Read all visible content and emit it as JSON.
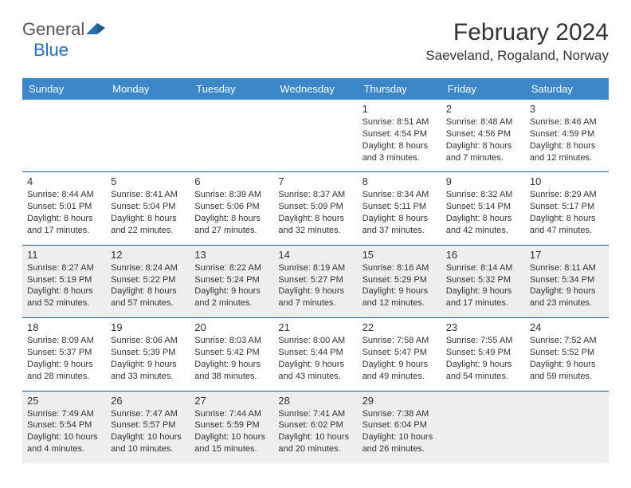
{
  "logo": {
    "text1": "General",
    "text2": "Blue"
  },
  "title": "February 2024",
  "location": "Saeveland, Rogaland, Norway",
  "colors": {
    "header_bg": "#3b87c8",
    "header_text": "#ffffff",
    "border": "#1d5a8e",
    "shaded": "#eeeeee",
    "logo_blue": "#2a6db5",
    "logo_gray": "#555555"
  },
  "weekdays": [
    "Sunday",
    "Monday",
    "Tuesday",
    "Wednesday",
    "Thursday",
    "Friday",
    "Saturday"
  ],
  "weeks": [
    [
      null,
      null,
      null,
      null,
      {
        "n": "1",
        "sunrise": "8:51 AM",
        "sunset": "4:54 PM",
        "day_h": "8",
        "day_m": "3"
      },
      {
        "n": "2",
        "sunrise": "8:48 AM",
        "sunset": "4:56 PM",
        "day_h": "8",
        "day_m": "7"
      },
      {
        "n": "3",
        "sunrise": "8:46 AM",
        "sunset": "4:59 PM",
        "day_h": "8",
        "day_m": "12"
      }
    ],
    [
      {
        "n": "4",
        "sunrise": "8:44 AM",
        "sunset": "5:01 PM",
        "day_h": "8",
        "day_m": "17"
      },
      {
        "n": "5",
        "sunrise": "8:41 AM",
        "sunset": "5:04 PM",
        "day_h": "8",
        "day_m": "22"
      },
      {
        "n": "6",
        "sunrise": "8:39 AM",
        "sunset": "5:06 PM",
        "day_h": "8",
        "day_m": "27"
      },
      {
        "n": "7",
        "sunrise": "8:37 AM",
        "sunset": "5:09 PM",
        "day_h": "8",
        "day_m": "32"
      },
      {
        "n": "8",
        "sunrise": "8:34 AM",
        "sunset": "5:11 PM",
        "day_h": "8",
        "day_m": "37"
      },
      {
        "n": "9",
        "sunrise": "8:32 AM",
        "sunset": "5:14 PM",
        "day_h": "8",
        "day_m": "42"
      },
      {
        "n": "10",
        "sunrise": "8:29 AM",
        "sunset": "5:17 PM",
        "day_h": "8",
        "day_m": "47"
      }
    ],
    [
      {
        "n": "11",
        "sunrise": "8:27 AM",
        "sunset": "5:19 PM",
        "day_h": "8",
        "day_m": "52",
        "shaded": true
      },
      {
        "n": "12",
        "sunrise": "8:24 AM",
        "sunset": "5:22 PM",
        "day_h": "8",
        "day_m": "57",
        "shaded": true
      },
      {
        "n": "13",
        "sunrise": "8:22 AM",
        "sunset": "5:24 PM",
        "day_h": "9",
        "day_m": "2",
        "shaded": true
      },
      {
        "n": "14",
        "sunrise": "8:19 AM",
        "sunset": "5:27 PM",
        "day_h": "9",
        "day_m": "7",
        "shaded": true
      },
      {
        "n": "15",
        "sunrise": "8:16 AM",
        "sunset": "5:29 PM",
        "day_h": "9",
        "day_m": "12",
        "shaded": true
      },
      {
        "n": "16",
        "sunrise": "8:14 AM",
        "sunset": "5:32 PM",
        "day_h": "9",
        "day_m": "17",
        "shaded": true
      },
      {
        "n": "17",
        "sunrise": "8:11 AM",
        "sunset": "5:34 PM",
        "day_h": "9",
        "day_m": "23",
        "shaded": true
      }
    ],
    [
      {
        "n": "18",
        "sunrise": "8:09 AM",
        "sunset": "5:37 PM",
        "day_h": "9",
        "day_m": "28"
      },
      {
        "n": "19",
        "sunrise": "8:06 AM",
        "sunset": "5:39 PM",
        "day_h": "9",
        "day_m": "33"
      },
      {
        "n": "20",
        "sunrise": "8:03 AM",
        "sunset": "5:42 PM",
        "day_h": "9",
        "day_m": "38"
      },
      {
        "n": "21",
        "sunrise": "8:00 AM",
        "sunset": "5:44 PM",
        "day_h": "9",
        "day_m": "43"
      },
      {
        "n": "22",
        "sunrise": "7:58 AM",
        "sunset": "5:47 PM",
        "day_h": "9",
        "day_m": "49"
      },
      {
        "n": "23",
        "sunrise": "7:55 AM",
        "sunset": "5:49 PM",
        "day_h": "9",
        "day_m": "54"
      },
      {
        "n": "24",
        "sunrise": "7:52 AM",
        "sunset": "5:52 PM",
        "day_h": "9",
        "day_m": "59"
      }
    ],
    [
      {
        "n": "25",
        "sunrise": "7:49 AM",
        "sunset": "5:54 PM",
        "day_h": "10",
        "day_m": "4",
        "shaded": true
      },
      {
        "n": "26",
        "sunrise": "7:47 AM",
        "sunset": "5:57 PM",
        "day_h": "10",
        "day_m": "10",
        "shaded": true
      },
      {
        "n": "27",
        "sunrise": "7:44 AM",
        "sunset": "5:59 PM",
        "day_h": "10",
        "day_m": "15",
        "shaded": true
      },
      {
        "n": "28",
        "sunrise": "7:41 AM",
        "sunset": "6:02 PM",
        "day_h": "10",
        "day_m": "20",
        "shaded": true
      },
      {
        "n": "29",
        "sunrise": "7:38 AM",
        "sunset": "6:04 PM",
        "day_h": "10",
        "day_m": "26",
        "shaded": true
      },
      {
        "shaded": true
      },
      {
        "shaded": true
      }
    ]
  ],
  "labels": {
    "sunrise": "Sunrise:",
    "sunset": "Sunset:",
    "daylight": "Daylight:",
    "hours": "hours",
    "and": "and",
    "minutes": "minutes."
  }
}
